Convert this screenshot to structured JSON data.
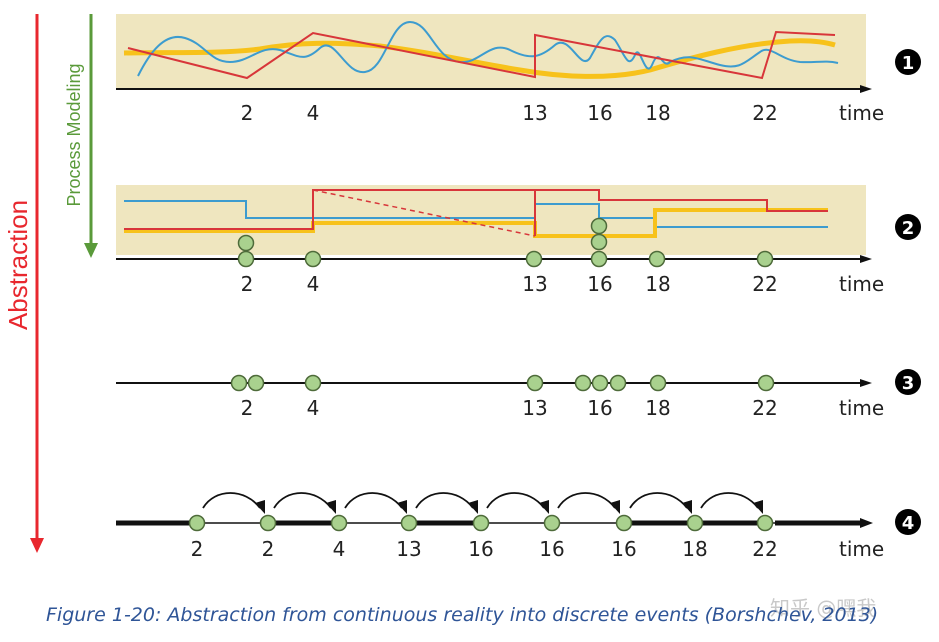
{
  "left_arrows": {
    "abstraction_label": "Abstraction",
    "process_modeling_label": "Process Modeling",
    "abstraction_color": "#e8272e",
    "process_color": "#5a9a3a"
  },
  "axis_word": "time",
  "colors": {
    "panel": "#efe6bf",
    "red": "#d8363a",
    "blue": "#3d9ccf",
    "yellow": "#f7c21b",
    "event_fill": "#a9d18e",
    "event_stroke": "#4e6b3a"
  },
  "panels": [
    {
      "number": "1",
      "ticks": [
        "2",
        "4",
        "13",
        "16",
        "18",
        "22"
      ]
    },
    {
      "number": "2",
      "ticks": [
        "2",
        "4",
        "13",
        "16",
        "18",
        "22"
      ]
    },
    {
      "number": "3",
      "ticks": [
        "2",
        "4",
        "13",
        "16",
        "18",
        "22"
      ]
    },
    {
      "number": "4",
      "ticks": [
        "2",
        "2",
        "4",
        "13",
        "16",
        "16",
        "16",
        "18",
        "22"
      ]
    }
  ],
  "caption": "Figure 1-20: Abstraction from continuous reality into discrete events (Borshchev, 2013)",
  "watermark": "知乎 @嘿我"
}
